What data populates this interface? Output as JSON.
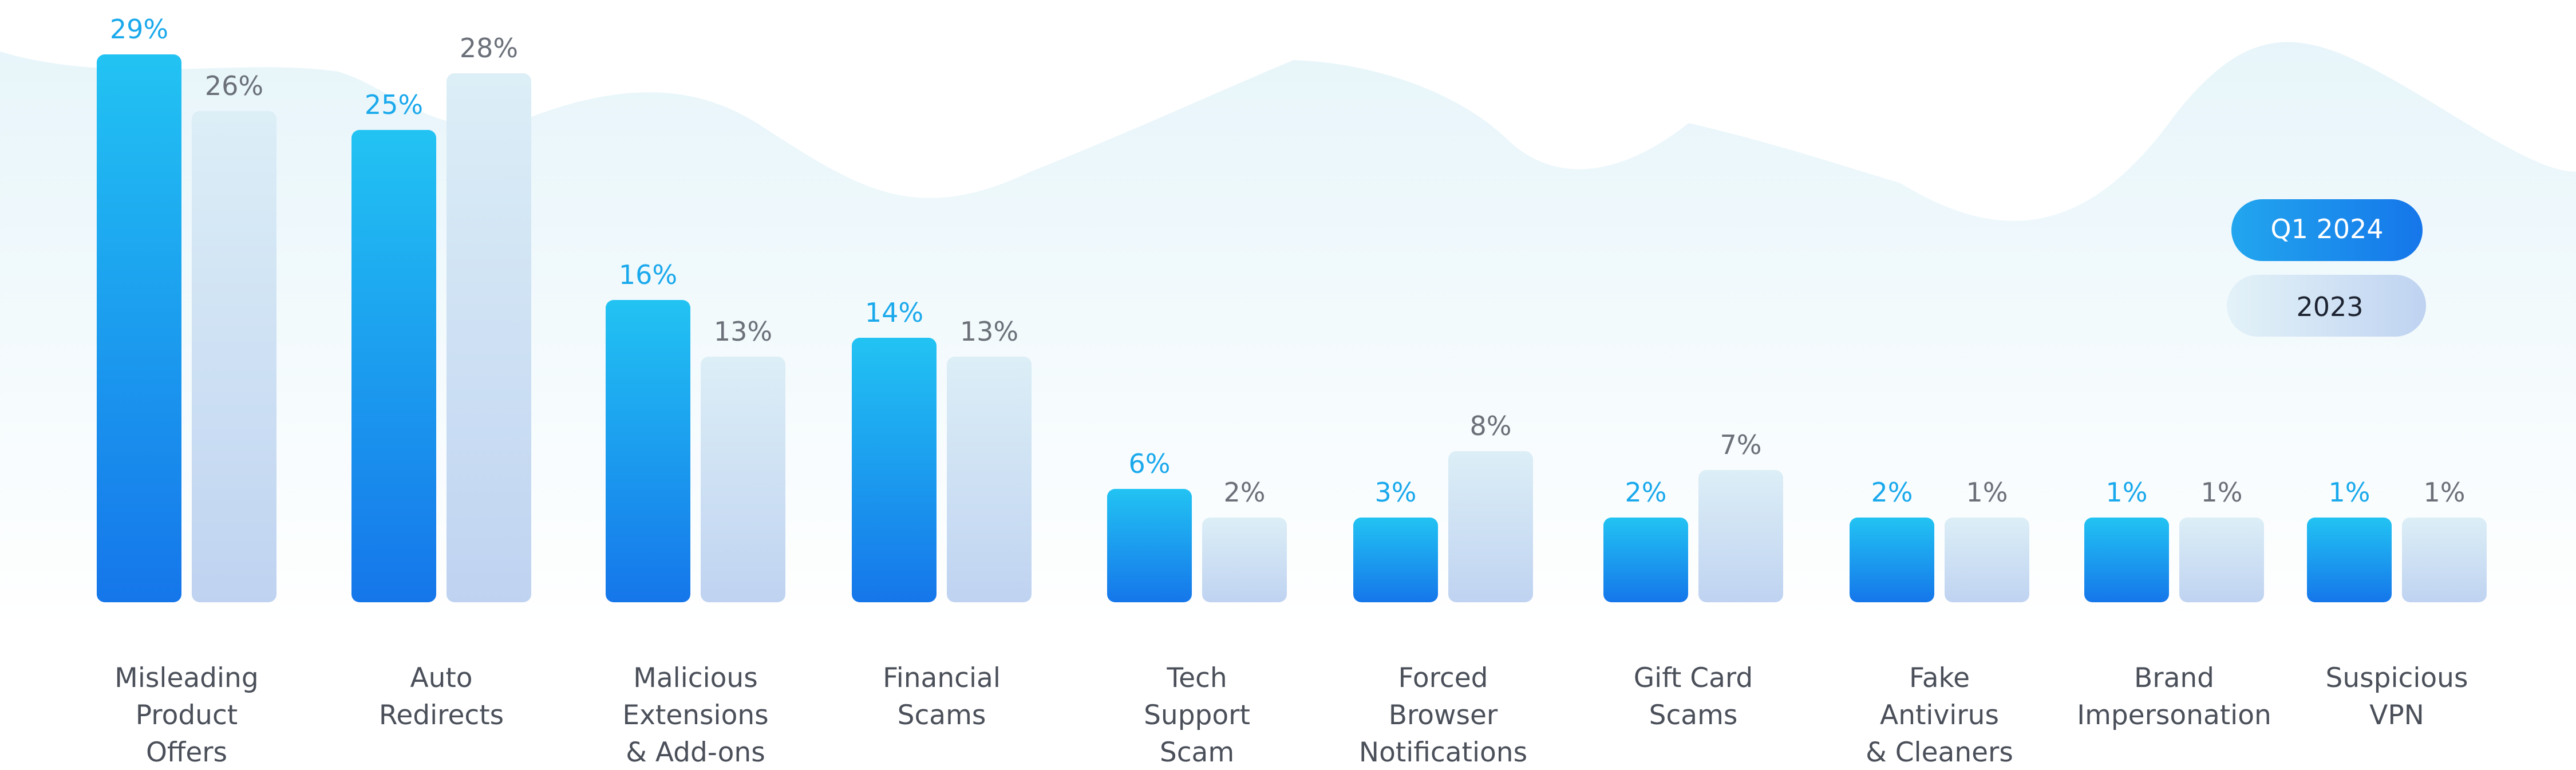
{
  "chart_data": {
    "type": "bar",
    "categories": [
      [
        "Misleading",
        "Product",
        "Offers"
      ],
      [
        "Auto",
        "Redirects"
      ],
      [
        "Malicious",
        "Extensions",
        "& Add-ons"
      ],
      [
        "Financial",
        "Scams"
      ],
      [
        "Tech",
        "Support",
        "Scam"
      ],
      [
        "Forced",
        "Browser",
        "Notifications"
      ],
      [
        "Gift Card",
        "Scams"
      ],
      [
        "Fake",
        "Antivirus",
        "& Cleaners"
      ],
      [
        "Brand",
        "Impersonation"
      ],
      [
        "Suspicious",
        "VPN"
      ]
    ],
    "series": [
      {
        "name": "Q1 2024",
        "values": [
          29,
          25,
          16,
          14,
          6,
          3,
          2,
          2,
          1,
          1
        ],
        "labels": [
          "29%",
          "25%",
          "16%",
          "14%",
          "6%",
          "3%",
          "2%",
          "2%",
          "1%",
          "1%"
        ],
        "color_top": "#22c3f3",
        "color_bottom": "#1576ea",
        "label_color": "#1aa9ec"
      },
      {
        "name": "2023",
        "values": [
          26,
          28,
          13,
          13,
          2,
          8,
          7,
          1,
          1,
          1
        ],
        "labels": [
          "26%",
          "28%",
          "13%",
          "13%",
          "2%",
          "8%",
          "7%",
          "1%",
          "1%",
          "1%"
        ],
        "color_top": "#dceef6",
        "color_bottom": "#bfd3f1",
        "label_color": "#6b7079"
      }
    ],
    "legend_position": "right",
    "ylim": [
      0,
      29
    ],
    "grid": false
  }
}
